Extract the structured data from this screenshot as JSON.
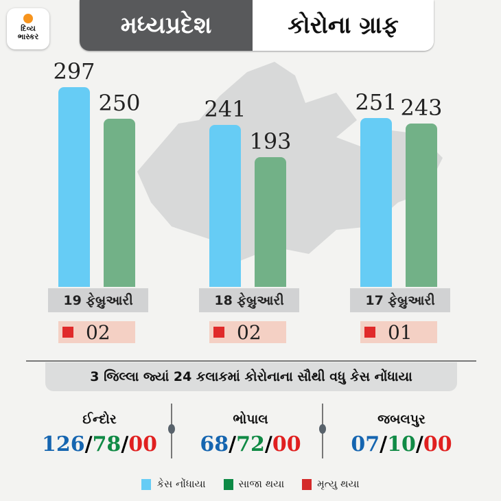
{
  "logo": {
    "line1": "દિવ્ય",
    "line2": "ભાસ્કર"
  },
  "header": {
    "left": "મધ્યપ્રદેશ",
    "right": "કોરોના ગ્રાફ"
  },
  "colors": {
    "cases": "#66ccf5",
    "recovered": "#72b187",
    "deaths": "#e02a2a"
  },
  "chart_data": {
    "type": "bar",
    "title": "મધ્યપ્રદેશ કોરોના ગ્રાફ",
    "categories": [
      "19 ફેબ્રુઆરી",
      "18 ફેબ્રુઆરી",
      "17 ફેબ્રુઆરી"
    ],
    "series": [
      {
        "name": "કેસ નોંધાયા",
        "values": [
          297,
          241,
          251
        ]
      },
      {
        "name": "સાજા થયા",
        "values": [
          250,
          193,
          243
        ]
      },
      {
        "name": "મૃત્યુ થયા",
        "values": [
          "02",
          "02",
          "01"
        ]
      }
    ]
  },
  "subtitle": "3 જિલ્લા જ્યાં 24 કલાકમાં કોરોનાના સૌથી વધુ કેસ નોંધાયા",
  "districts": [
    {
      "name": "ઈન્દોર",
      "cases": "126",
      "recovered": "78",
      "deaths": "00"
    },
    {
      "name": "ભોપાલ",
      "cases": "68",
      "recovered": "72",
      "deaths": "00"
    },
    {
      "name": "જબલપુર",
      "cases": "07",
      "recovered": "10",
      "deaths": "00"
    }
  ],
  "legend": [
    "કેસ નોંધાયા",
    "સાજા થયા",
    "મૃત્યુ થયા"
  ]
}
